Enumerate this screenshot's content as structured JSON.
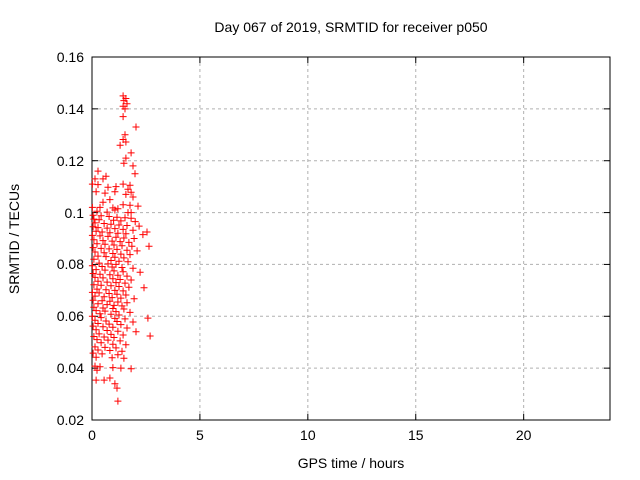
{
  "colors": {
    "background": "#ffffff",
    "marker": "#ff0000",
    "grid": "#b0b0b0",
    "axis": "#000000",
    "text": "#000000"
  },
  "chart_data": {
    "type": "scatter",
    "title": "Day 067 of 2019, SRMTID for receiver p050",
    "xlabel": "GPS time / hours",
    "ylabel": "SRMTID / TECUs",
    "xlim": [
      0,
      24
    ],
    "ylim": [
      0.02,
      0.16
    ],
    "xticks": [
      {
        "value": 0,
        "label": "0"
      },
      {
        "value": 5,
        "label": "5"
      },
      {
        "value": 10,
        "label": "10"
      },
      {
        "value": 15,
        "label": "15"
      },
      {
        "value": 20,
        "label": "20"
      }
    ],
    "yticks": [
      {
        "value": 0.02,
        "label": "0.02"
      },
      {
        "value": 0.04,
        "label": "0.04"
      },
      {
        "value": 0.06,
        "label": "0.06"
      },
      {
        "value": 0.08,
        "label": "0.08"
      },
      {
        "value": 0.1,
        "label": "0.1"
      },
      {
        "value": 0.12,
        "label": "0.12"
      },
      {
        "value": 0.14,
        "label": "0.14"
      },
      {
        "value": 0.16,
        "label": "0.16"
      }
    ],
    "grid": true,
    "legend": "none",
    "marker": {
      "shape": "plus",
      "color": "#ff0000",
      "size": 7
    },
    "series": [
      {
        "name": "SRMTID",
        "points": [
          [
            1.44,
            0.145
          ],
          [
            1.57,
            0.144
          ],
          [
            1.48,
            0.1432
          ],
          [
            1.62,
            0.142
          ],
          [
            1.44,
            0.141
          ],
          [
            1.53,
            0.14
          ],
          [
            1.44,
            0.137
          ],
          [
            2.04,
            0.133
          ],
          [
            1.53,
            0.13
          ],
          [
            1.44,
            0.1282
          ],
          [
            1.57,
            0.1272
          ],
          [
            1.3,
            0.126
          ],
          [
            1.81,
            0.123
          ],
          [
            1.57,
            0.121
          ],
          [
            1.48,
            0.119
          ],
          [
            1.9,
            0.118
          ],
          [
            0.28,
            0.116
          ],
          [
            1.99,
            0.115
          ],
          [
            0.65,
            0.114
          ],
          [
            0.14,
            0.113
          ],
          [
            0.51,
            0.113
          ],
          [
            0.02,
            0.111
          ],
          [
            1.44,
            0.111
          ],
          [
            0.28,
            0.1108
          ],
          [
            1.76,
            0.1105
          ],
          [
            1.11,
            0.11
          ],
          [
            0.74,
            0.1098
          ],
          [
            1.67,
            0.109
          ],
          [
            0.19,
            0.108
          ],
          [
            1.06,
            0.108
          ],
          [
            1.81,
            0.1078
          ],
          [
            0.6,
            0.1075
          ],
          [
            1.57,
            0.107
          ],
          [
            1.9,
            0.106
          ],
          [
            0.83,
            0.105
          ],
          [
            0.51,
            0.104
          ],
          [
            1.44,
            0.103
          ],
          [
            1.76,
            0.1028
          ],
          [
            2.13,
            0.1025
          ],
          [
            0.02,
            0.102
          ],
          [
            0.37,
            0.102
          ],
          [
            0.97,
            0.1018
          ],
          [
            1.2,
            0.1015
          ],
          [
            1.06,
            0.101
          ],
          [
            0.23,
            0.1005
          ],
          [
            0.7,
            0.1002
          ],
          [
            1.67,
            0.1
          ],
          [
            1.81,
            0.1
          ],
          [
            0.05,
            0.099
          ],
          [
            0.42,
            0.0988
          ],
          [
            0.79,
            0.0985
          ],
          [
            1.16,
            0.0982
          ],
          [
            1.53,
            0.098
          ],
          [
            1.81,
            0.0978
          ],
          [
            0.09,
            0.0975
          ],
          [
            0.33,
            0.0972
          ],
          [
            1.0,
            0.097
          ],
          [
            1.34,
            0.0968
          ],
          [
            2.0,
            0.0965
          ],
          [
            0.14,
            0.096
          ],
          [
            0.56,
            0.0958
          ],
          [
            0.88,
            0.0955
          ],
          [
            1.25,
            0.0952
          ],
          [
            1.62,
            0.095
          ],
          [
            2.18,
            0.0948
          ],
          [
            0.05,
            0.0945
          ],
          [
            0.28,
            0.0942
          ],
          [
            0.7,
            0.094
          ],
          [
            1.06,
            0.0938
          ],
          [
            1.44,
            0.0935
          ],
          [
            1.9,
            0.0932
          ],
          [
            0.19,
            0.0928
          ],
          [
            0.47,
            0.0925
          ],
          [
            2.55,
            0.0925
          ],
          [
            0.83,
            0.0922
          ],
          [
            1.2,
            0.092
          ],
          [
            1.57,
            0.0918
          ],
          [
            2.36,
            0.0915
          ],
          [
            0.02,
            0.0912
          ],
          [
            0.37,
            0.091
          ],
          [
            0.74,
            0.0908
          ],
          [
            1.11,
            0.0905
          ],
          [
            1.48,
            0.0902
          ],
          [
            1.95,
            0.09
          ],
          [
            0.09,
            0.0895
          ],
          [
            0.51,
            0.0892
          ],
          [
            0.93,
            0.089
          ],
          [
            1.3,
            0.0888
          ],
          [
            1.71,
            0.0885
          ],
          [
            0.23,
            0.088
          ],
          [
            0.6,
            0.0878
          ],
          [
            1.02,
            0.0875
          ],
          [
            1.39,
            0.0872
          ],
          [
            2.64,
            0.087
          ],
          [
            1.85,
            0.087
          ],
          [
            0.05,
            0.0865
          ],
          [
            0.42,
            0.0862
          ],
          [
            0.79,
            0.086
          ],
          [
            1.16,
            0.0858
          ],
          [
            1.62,
            0.0855
          ],
          [
            2.09,
            0.0852
          ],
          [
            0.14,
            0.0848
          ],
          [
            0.56,
            0.0845
          ],
          [
            0.97,
            0.0842
          ],
          [
            1.34,
            0.084
          ],
          [
            1.76,
            0.0838
          ],
          [
            0.28,
            0.0832
          ],
          [
            0.65,
            0.083
          ],
          [
            1.06,
            0.0828
          ],
          [
            1.48,
            0.0825
          ],
          [
            0.09,
            0.082
          ],
          [
            0.88,
            0.0815
          ],
          [
            1.25,
            0.0812
          ],
          [
            1.67,
            0.081
          ],
          [
            0.33,
            0.0805
          ],
          [
            0.74,
            0.0802
          ],
          [
            1.11,
            0.08
          ],
          [
            0.02,
            0.0795
          ],
          [
            0.47,
            0.0792
          ],
          [
            0.93,
            0.079
          ],
          [
            1.39,
            0.0788
          ],
          [
            1.9,
            0.0785
          ],
          [
            0.19,
            0.078
          ],
          [
            0.6,
            0.0778
          ],
          [
            1.02,
            0.0775
          ],
          [
            1.44,
            0.0772
          ],
          [
            2.23,
            0.077
          ],
          [
            0.05,
            0.0765
          ],
          [
            0.37,
            0.0762
          ],
          [
            0.83,
            0.076
          ],
          [
            1.2,
            0.0758
          ],
          [
            1.62,
            0.0755
          ],
          [
            0.14,
            0.075
          ],
          [
            0.51,
            0.0748
          ],
          [
            0.97,
            0.0745
          ],
          [
            1.3,
            0.0742
          ],
          [
            1.81,
            0.074
          ],
          [
            0.28,
            0.0735
          ],
          [
            0.7,
            0.0732
          ],
          [
            1.11,
            0.073
          ],
          [
            1.53,
            0.0728
          ],
          [
            0.09,
            0.0722
          ],
          [
            0.42,
            0.072
          ],
          [
            0.88,
            0.0718
          ],
          [
            1.25,
            0.0715
          ],
          [
            1.71,
            0.0712
          ],
          [
            2.41,
            0.071
          ],
          [
            0.23,
            0.0705
          ],
          [
            0.65,
            0.0702
          ],
          [
            1.06,
            0.07
          ],
          [
            1.44,
            0.0698
          ],
          [
            0.02,
            0.0692
          ],
          [
            0.33,
            0.069
          ],
          [
            0.79,
            0.0688
          ],
          [
            1.16,
            0.0685
          ],
          [
            1.57,
            0.0682
          ],
          [
            0.14,
            0.0678
          ],
          [
            0.56,
            0.0675
          ],
          [
            0.93,
            0.0672
          ],
          [
            1.34,
            0.067
          ],
          [
            1.95,
            0.0668
          ],
          [
            0.05,
            0.0662
          ],
          [
            0.47,
            0.066
          ],
          [
            0.83,
            0.0658
          ],
          [
            1.2,
            0.0655
          ],
          [
            1.62,
            0.0652
          ],
          [
            0.28,
            0.0648
          ],
          [
            0.7,
            0.0645
          ],
          [
            1.02,
            0.0642
          ],
          [
            1.39,
            0.064
          ],
          [
            0.09,
            0.0635
          ],
          [
            0.51,
            0.0632
          ],
          [
            0.97,
            0.063
          ],
          [
            1.48,
            0.0628
          ],
          [
            0.19,
            0.0622
          ],
          [
            0.6,
            0.062
          ],
          [
            1.11,
            0.0618
          ],
          [
            1.76,
            0.0615
          ],
          [
            0.37,
            0.061
          ],
          [
            0.88,
            0.0608
          ],
          [
            1.25,
            0.0605
          ],
          [
            0.02,
            0.06
          ],
          [
            0.42,
            0.0595
          ],
          [
            1.06,
            0.0592
          ],
          [
            2.59,
            0.0593
          ],
          [
            1.53,
            0.059
          ],
          [
            0.14,
            0.0585
          ],
          [
            0.65,
            0.0582
          ],
          [
            1.16,
            0.058
          ],
          [
            1.9,
            0.0578
          ],
          [
            0.28,
            0.0572
          ],
          [
            0.79,
            0.057
          ],
          [
            1.34,
            0.0568
          ],
          [
            0.05,
            0.0562
          ],
          [
            0.51,
            0.056
          ],
          [
            0.97,
            0.0558
          ],
          [
            1.62,
            0.0555
          ],
          [
            0.19,
            0.0548
          ],
          [
            0.7,
            0.0545
          ],
          [
            1.2,
            0.0542
          ],
          [
            2.04,
            0.054
          ],
          [
            0.33,
            0.0532
          ],
          [
            0.88,
            0.053
          ],
          [
            1.44,
            0.0528
          ],
          [
            2.69,
            0.0524
          ],
          [
            0.09,
            0.0522
          ],
          [
            0.56,
            0.052
          ],
          [
            1.02,
            0.0518
          ],
          [
            0.23,
            0.051
          ],
          [
            0.74,
            0.0508
          ],
          [
            1.3,
            0.0505
          ],
          [
            0.42,
            0.0498
          ],
          [
            0.97,
            0.0492
          ],
          [
            1.57,
            0.049
          ],
          [
            0.14,
            0.0482
          ],
          [
            0.6,
            0.048
          ],
          [
            1.11,
            0.0478
          ],
          [
            0.28,
            0.047
          ],
          [
            0.83,
            0.0468
          ],
          [
            1.39,
            0.0465
          ],
          [
            0.05,
            0.0458
          ],
          [
            0.47,
            0.0455
          ],
          [
            1.2,
            0.0452
          ],
          [
            0.19,
            0.0442
          ],
          [
            0.93,
            0.044
          ],
          [
            1.48,
            0.0438
          ],
          [
            0.14,
            0.0408
          ],
          [
            0.37,
            0.0405
          ],
          [
            0.97,
            0.0402
          ],
          [
            1.34,
            0.04
          ],
          [
            1.81,
            0.0398
          ],
          [
            0.23,
            0.0392
          ],
          [
            0.19,
            0.0354
          ],
          [
            0.56,
            0.0354
          ],
          [
            0.83,
            0.0362
          ],
          [
            1.06,
            0.034
          ],
          [
            1.16,
            0.0323
          ],
          [
            1.2,
            0.0273
          ]
        ]
      }
    ]
  }
}
